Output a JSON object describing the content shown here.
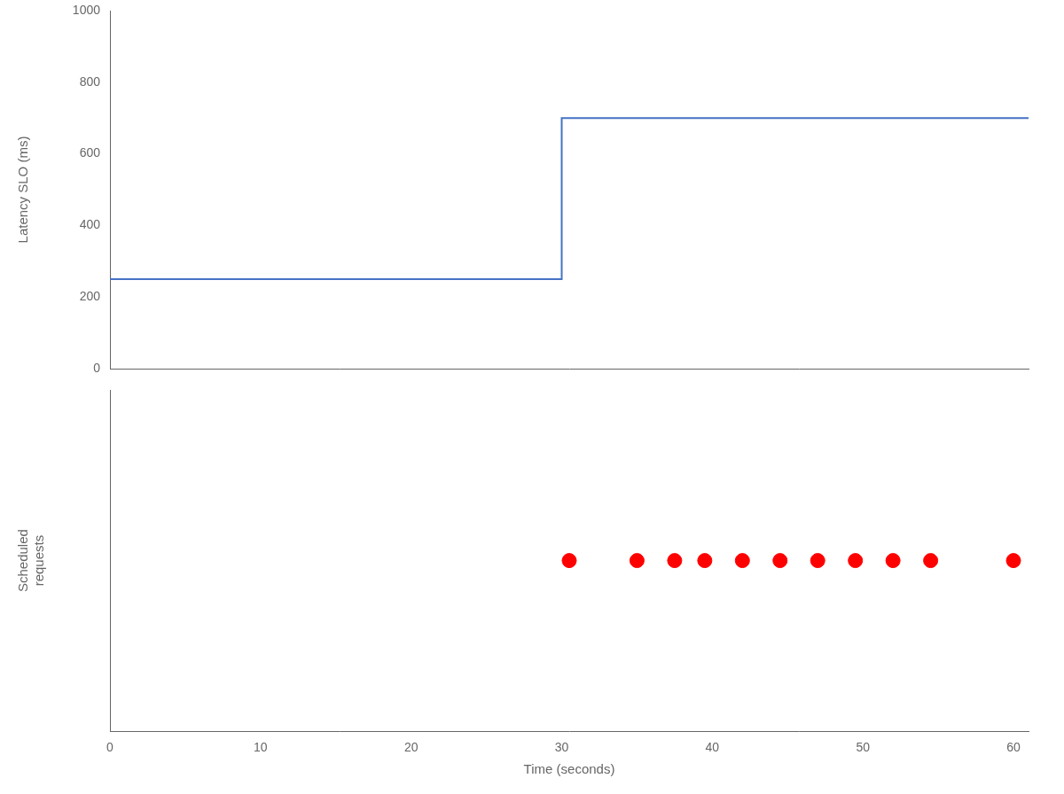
{
  "chart_data": [
    {
      "type": "line",
      "x": [
        0,
        30,
        30,
        61
      ],
      "values": [
        250,
        250,
        700,
        700
      ],
      "color": "#4472c4",
      "ylabel": "Latency SLO (ms)",
      "xlim": [
        0,
        61
      ],
      "xticks": [
        0,
        10,
        20,
        30,
        40,
        50,
        60
      ],
      "ylim": [
        0,
        1000
      ],
      "yticks": [
        0,
        200,
        400,
        600,
        800,
        1000
      ],
      "grid": false,
      "tick_labels": "y"
    },
    {
      "type": "scatter",
      "x": [
        30.5,
        35.0,
        37.5,
        39.5,
        42.0,
        44.5,
        47.0,
        49.5,
        52.0,
        54.5,
        60.0
      ],
      "values": [
        0,
        0,
        0,
        0,
        0,
        0,
        0,
        0,
        0,
        0,
        0
      ],
      "color": "red",
      "ylabel": "Scheduled\nrequests",
      "xlabel": "Time (seconds)",
      "xlim": [
        0,
        61
      ],
      "xticks": [
        0,
        10,
        20,
        30,
        40,
        50,
        60
      ],
      "ylim": [
        -2,
        2
      ],
      "grid": false,
      "tick_labels": "x"
    }
  ]
}
